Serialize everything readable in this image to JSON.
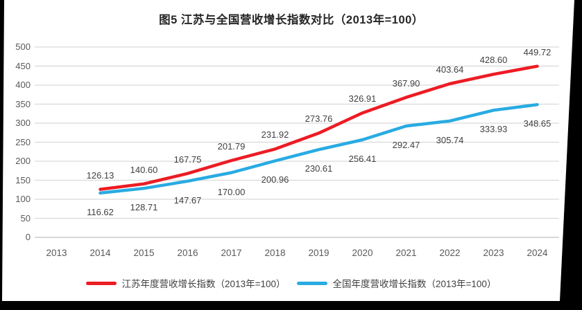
{
  "chart_data": {
    "type": "line",
    "title": "图5  江苏与全国营收增长指数对比（2013年=100）",
    "categories": [
      "2013",
      "2014",
      "2015",
      "2016",
      "2017",
      "2018",
      "2019",
      "2020",
      "2021",
      "2022",
      "2023",
      "2024"
    ],
    "xlabel": "",
    "ylabel": "",
    "ylim": [
      0,
      500
    ],
    "y_ticks": [
      0,
      50,
      100,
      150,
      200,
      250,
      300,
      350,
      400,
      450,
      500
    ],
    "grid": true,
    "legend_position": "bottom",
    "colors": {
      "jiangsu": "#EC1C24",
      "national": "#29ABE2",
      "gridline": "#D9D9D9",
      "axis_line": "#BFBFBF",
      "tick_text": "#595959",
      "label_text": "#404040"
    },
    "series": [
      {
        "name": "江苏年度营收增长指数（2013年=100）",
        "key": "jiangsu-series-line",
        "color": "#EC1C24",
        "label_position": "above",
        "values": [
          null,
          126.13,
          140.6,
          167.75,
          201.79,
          231.92,
          273.76,
          326.91,
          367.9,
          403.64,
          428.6,
          449.72
        ],
        "labels": [
          "",
          "126.13",
          "140.60",
          "167.75",
          "201.79",
          "231.92",
          "273.76",
          "326.91",
          "367.90",
          "403.64",
          "428.60",
          "449.72"
        ]
      },
      {
        "name": "全国年度营收增长指数（2013年=100）",
        "key": "national-series-line",
        "color": "#29ABE2",
        "label_position": "below",
        "values": [
          null,
          116.62,
          128.71,
          147.67,
          170.0,
          200.96,
          230.61,
          256.41,
          292.47,
          305.74,
          333.93,
          348.65
        ],
        "labels": [
          "",
          "116.62",
          "128.71",
          "147.67",
          "170.00",
          "200.96",
          "230.61",
          "256.41",
          "292.47",
          "305.74",
          "333.93",
          "348.65"
        ]
      }
    ]
  }
}
